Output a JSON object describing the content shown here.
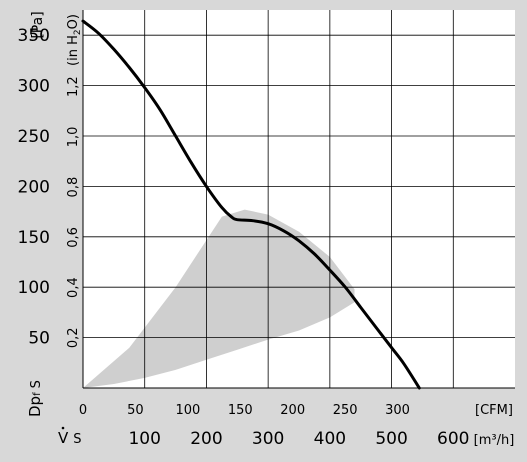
{
  "chart_data": {
    "type": "line",
    "title": "",
    "colors": {
      "frame_bg": "#d8d8d8",
      "plot_bg": "#ffffff",
      "grid": "#000000",
      "curve": "#000000",
      "operating_zone": "#cfcfcf"
    },
    "y_pa": {
      "label": "[Pa]",
      "ticks": [
        50,
        100,
        150,
        200,
        250,
        300,
        350
      ],
      "range": [
        0,
        375
      ]
    },
    "y_inh2o": {
      "label": "(in H",
      "label_sub": "2",
      "label_end": "O)",
      "ticks": [
        "0,2",
        "0,4",
        "0,6",
        "0,8",
        "1,0",
        "1,2"
      ]
    },
    "y_symbol": {
      "main": "Dp",
      "sub": "f",
      "sub2": "S"
    },
    "x_cfm": {
      "unit": "[CFM]",
      "ticks": [
        "0",
        "50",
        "100",
        "150",
        "200",
        "250",
        "300"
      ]
    },
    "x_m3h": {
      "unit": "[m³/h]",
      "ticks": [
        100,
        200,
        300,
        400,
        500,
        600
      ],
      "range": [
        0,
        700
      ]
    },
    "x_symbol": {
      "main": "V",
      "sub": "S"
    },
    "grid": true,
    "series": [
      {
        "x": [
          0,
          25,
          50,
          75,
          100,
          125,
          150,
          175,
          200,
          225,
          240,
          250,
          275,
          300,
          325,
          350,
          375,
          400,
          425,
          450,
          475,
          500,
          520,
          545
        ],
        "y": [
          364,
          352,
          336,
          318,
          298,
          276,
          250,
          224,
          200,
          179,
          170,
          167,
          166,
          163,
          156,
          146,
          133,
          117,
          100,
          80,
          60,
          40,
          24,
          0
        ]
      }
    ],
    "operating_zone": {
      "x": [
        0,
        75,
        150,
        225,
        262,
        300,
        350,
        400,
        440,
        440,
        400,
        350,
        300,
        250,
        200,
        150,
        100,
        50,
        0
      ],
      "y": [
        0,
        40,
        100,
        170,
        177,
        172,
        155,
        130,
        98,
        85,
        70,
        57,
        48,
        38,
        28,
        18,
        10,
        4,
        0
      ]
    }
  }
}
